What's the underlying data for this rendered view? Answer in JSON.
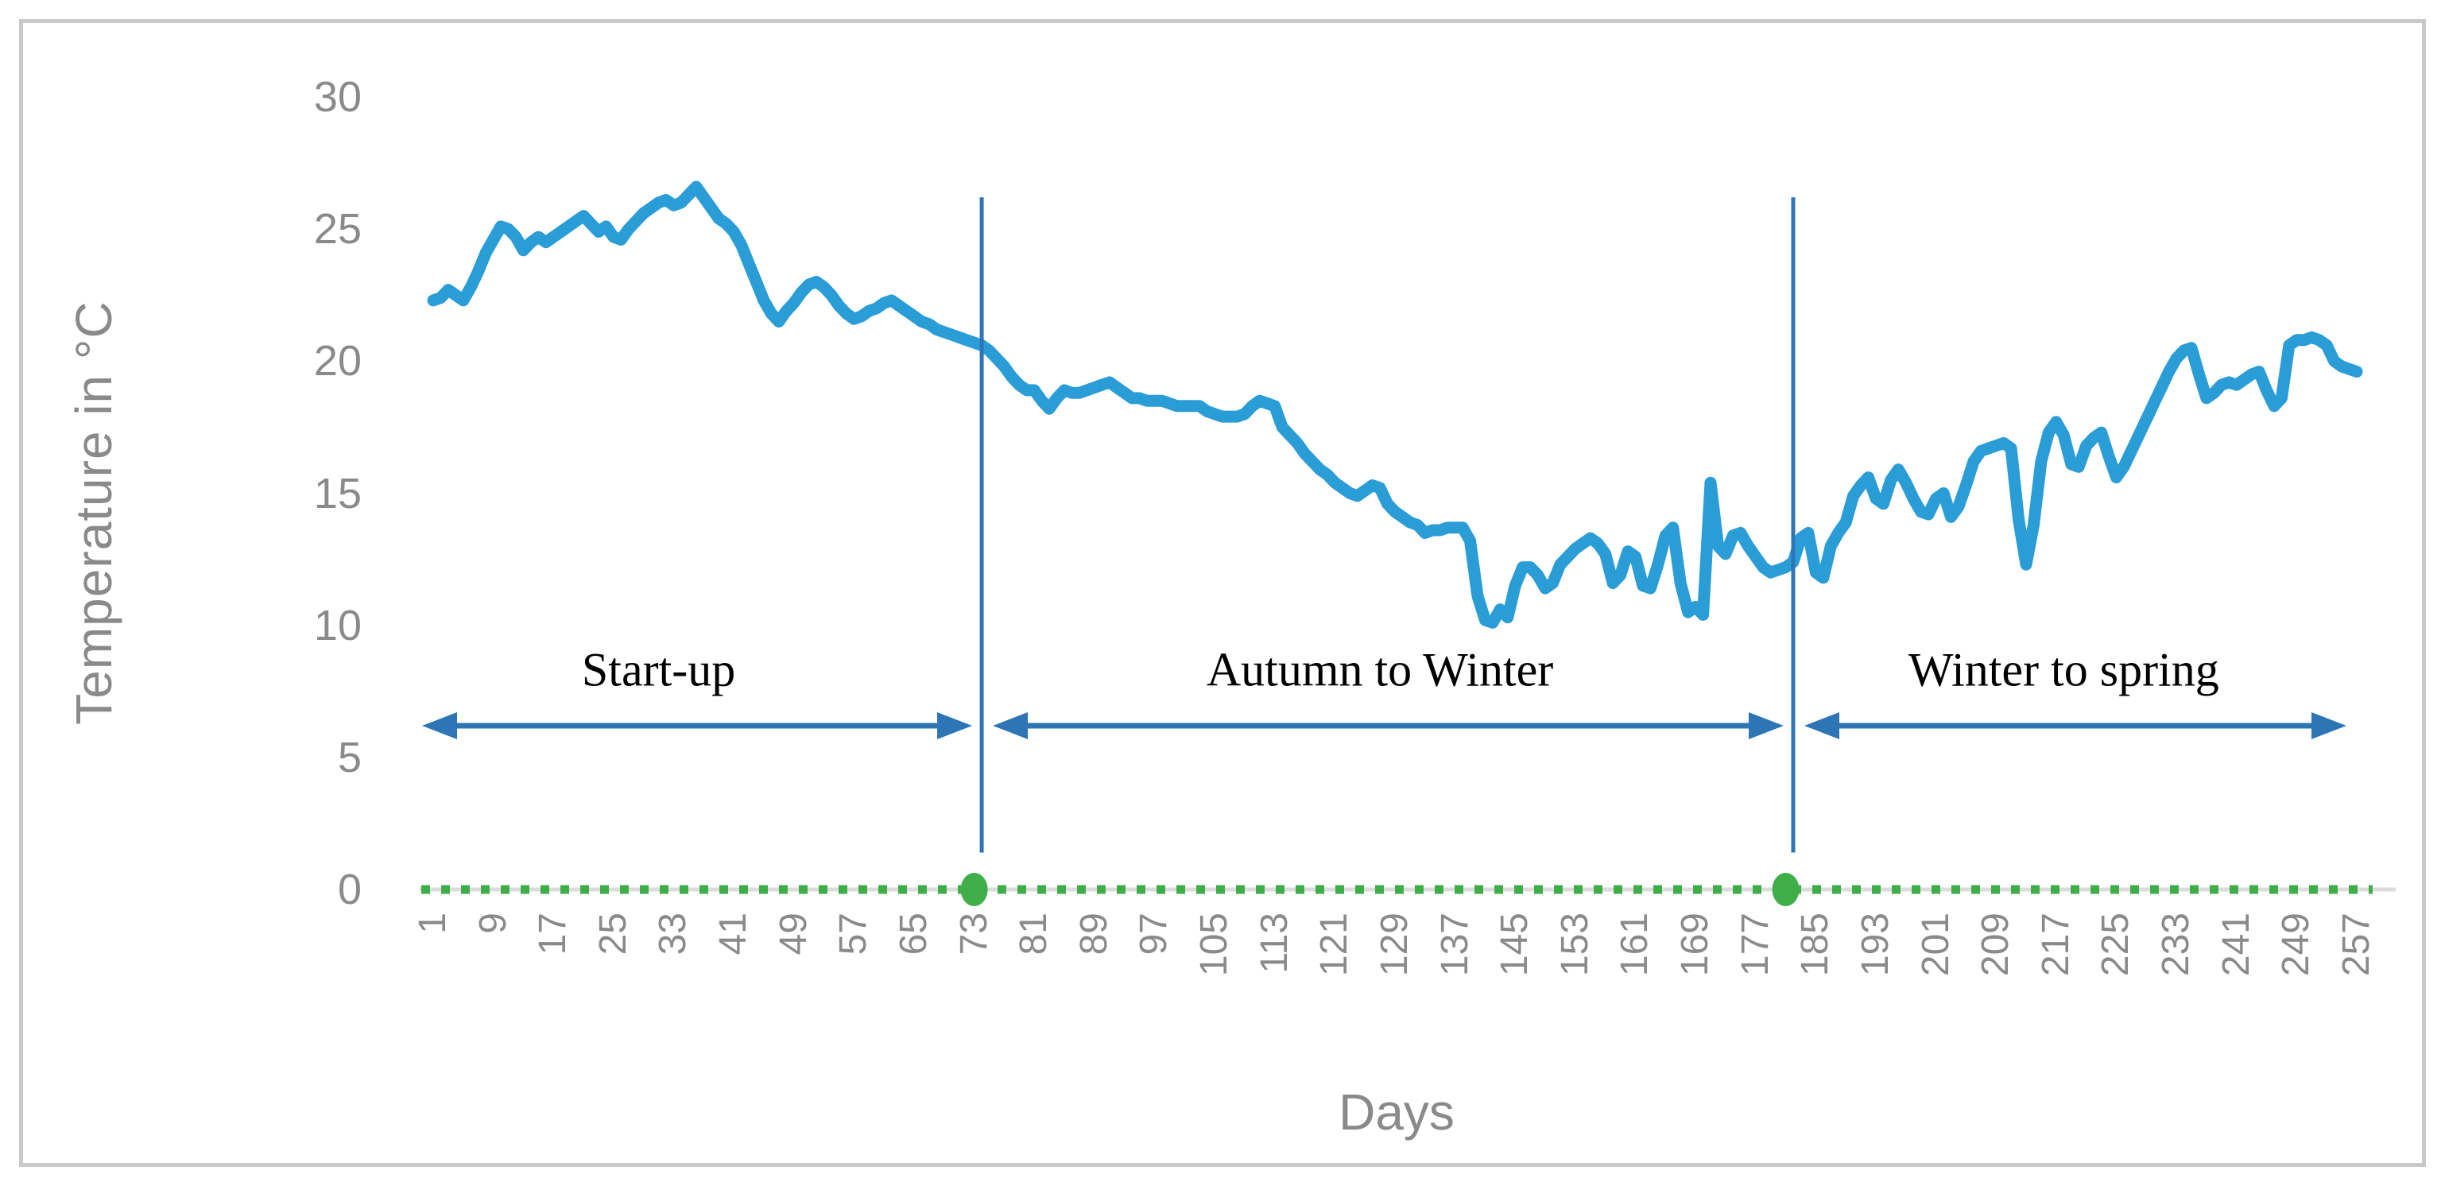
{
  "colors": {
    "series_blue": "#2a9dd7",
    "annotation_blue": "#2e75b6",
    "baseline_green": "#3fae49",
    "axis_text_gray": "#8a8a8a",
    "axis_line_gray": "#dcdcdc",
    "frame_gray": "#c9c9c9",
    "phase_label_black": "#000000"
  },
  "chart_data": {
    "type": "line",
    "title": "",
    "xlabel": "Days",
    "ylabel": "Temperature in °C",
    "ylim": [
      0,
      30
    ],
    "xlim": [
      1,
      257
    ],
    "grid": false,
    "legend": "none",
    "yticks": [
      30,
      25,
      20,
      15,
      10,
      5,
      0
    ],
    "xticks": [
      1,
      9,
      17,
      25,
      33,
      41,
      49,
      57,
      65,
      73,
      81,
      89,
      97,
      105,
      113,
      121,
      129,
      137,
      145,
      153,
      161,
      169,
      177,
      185,
      193,
      201,
      209,
      217,
      225,
      233,
      241,
      249,
      257
    ],
    "series": [
      {
        "name": "Temperature",
        "x_start": 1,
        "x_step": 1,
        "values": [
          22.3,
          22.4,
          22.7,
          22.5,
          22.3,
          22.8,
          23.4,
          24.1,
          24.6,
          25.1,
          25.0,
          24.7,
          24.2,
          24.5,
          24.7,
          24.5,
          24.7,
          24.9,
          25.1,
          25.3,
          25.5,
          25.2,
          24.9,
          25.1,
          24.7,
          24.6,
          25.0,
          25.3,
          25.6,
          25.8,
          26.0,
          26.1,
          25.9,
          26.0,
          26.3,
          26.6,
          26.2,
          25.8,
          25.4,
          25.2,
          24.9,
          24.4,
          23.7,
          23.0,
          22.3,
          21.8,
          21.5,
          21.9,
          22.2,
          22.6,
          22.9,
          23.0,
          22.8,
          22.5,
          22.1,
          21.8,
          21.6,
          21.7,
          21.9,
          22.0,
          22.2,
          22.3,
          22.1,
          21.9,
          21.7,
          21.5,
          21.4,
          21.2,
          21.1,
          21.0,
          20.9,
          20.8,
          20.7,
          20.6,
          20.4,
          20.1,
          19.8,
          19.4,
          19.1,
          18.9,
          18.9,
          18.5,
          18.2,
          18.6,
          18.9,
          18.8,
          18.8,
          18.9,
          19.0,
          19.1,
          19.2,
          19.0,
          18.8,
          18.6,
          18.6,
          18.5,
          18.5,
          18.5,
          18.4,
          18.3,
          18.3,
          18.3,
          18.3,
          18.1,
          18.0,
          17.9,
          17.9,
          17.9,
          18.0,
          18.3,
          18.5,
          18.4,
          18.3,
          17.5,
          17.2,
          16.9,
          16.5,
          16.2,
          15.9,
          15.7,
          15.4,
          15.2,
          15.0,
          14.9,
          15.1,
          15.3,
          15.2,
          14.6,
          14.3,
          14.1,
          13.9,
          13.8,
          13.5,
          13.6,
          13.6,
          13.7,
          13.7,
          13.7,
          13.2,
          11.1,
          10.2,
          10.1,
          10.6,
          10.3,
          11.5,
          12.2,
          12.2,
          11.9,
          11.4,
          11.6,
          12.3,
          12.6,
          12.9,
          13.1,
          13.3,
          13.1,
          12.7,
          11.6,
          11.9,
          12.8,
          12.6,
          11.5,
          11.4,
          12.3,
          13.4,
          13.7,
          11.6,
          10.5,
          10.7,
          10.4,
          15.4,
          13.0,
          12.7,
          13.4,
          13.5,
          13.0,
          12.6,
          12.2,
          12.0,
          12.1,
          12.2,
          12.4,
          13.3,
          13.5,
          12.0,
          11.8,
          13.0,
          13.5,
          13.9,
          14.9,
          15.3,
          15.6,
          14.8,
          14.6,
          15.5,
          15.9,
          15.4,
          14.8,
          14.3,
          14.2,
          14.8,
          15.0,
          14.1,
          14.5,
          15.3,
          16.2,
          16.6,
          16.7,
          16.8,
          16.9,
          16.7,
          14.0,
          12.3,
          13.8,
          16.2,
          17.3,
          17.7,
          17.2,
          16.1,
          16.0,
          16.8,
          17.1,
          17.3,
          16.4,
          15.6,
          16.0,
          16.6,
          17.2,
          17.8,
          18.4,
          19.0,
          19.6,
          20.1,
          20.4,
          20.5,
          19.5,
          18.6,
          18.8,
          19.1,
          19.2,
          19.1,
          19.3,
          19.5,
          19.6,
          18.9,
          18.3,
          18.6,
          20.6,
          20.8,
          20.8,
          20.9,
          20.8,
          20.6,
          20.0,
          19.8,
          19.7,
          19.6
        ]
      },
      {
        "name": "Zero baseline",
        "style": "dotted",
        "y_value": 0,
        "marker_days": [
          73,
          181
        ]
      }
    ],
    "annotations": {
      "boundary_line_days": [
        74,
        182
      ],
      "arrow_y_value": 6.2,
      "label_y_value": 8.3,
      "phases": [
        {
          "label": "Start-up",
          "from_day": 1,
          "to_day": 74,
          "label_center_day": 31
        },
        {
          "label": "Autumn to Winter",
          "from_day": 74,
          "to_day": 182,
          "label_center_day": 127
        },
        {
          "label": "Winter to spring",
          "from_day": 182,
          "to_day": 257,
          "label_center_day": 218
        }
      ]
    }
  }
}
